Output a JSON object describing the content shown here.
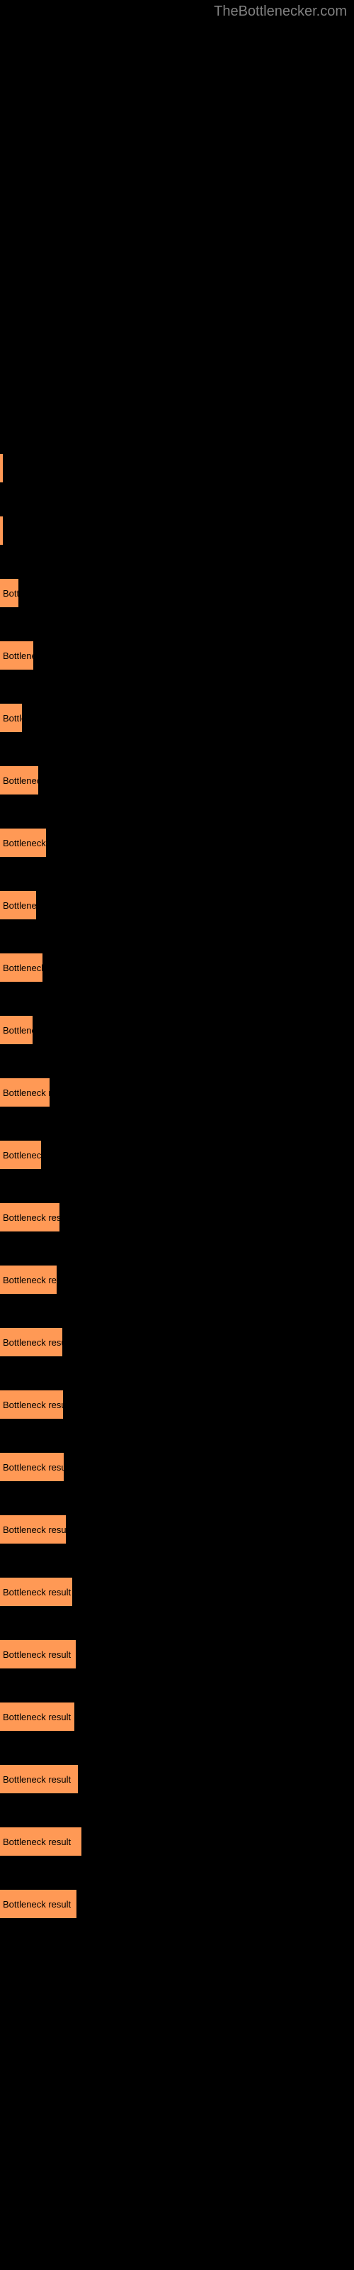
{
  "watermark": "TheBottlenecker.com",
  "chart": {
    "type": "bar",
    "background_color": "#000000",
    "bar_color": "#ff9955",
    "text_color": "#000000",
    "font_size": 13,
    "bars": [
      {
        "width": 3,
        "label": ""
      },
      {
        "width": 4,
        "label": ""
      },
      {
        "width": 26,
        "label": "Bottle"
      },
      {
        "width": 47,
        "label": "Bottleneck"
      },
      {
        "width": 31,
        "label": "Bottler"
      },
      {
        "width": 54,
        "label": "Bottleneck r"
      },
      {
        "width": 65,
        "label": "Bottleneck res"
      },
      {
        "width": 51,
        "label": "Bottleneck r"
      },
      {
        "width": 60,
        "label": "Bottleneck re"
      },
      {
        "width": 46,
        "label": "Bottlenec"
      },
      {
        "width": 70,
        "label": "Bottleneck resu"
      },
      {
        "width": 58,
        "label": "Bottleneck re"
      },
      {
        "width": 84,
        "label": "Bottleneck result"
      },
      {
        "width": 80,
        "label": "Bottleneck result"
      },
      {
        "width": 88,
        "label": "Bottleneck result"
      },
      {
        "width": 89,
        "label": "Bottleneck result"
      },
      {
        "width": 90,
        "label": "Bottleneck result"
      },
      {
        "width": 93,
        "label": "Bottleneck result"
      },
      {
        "width": 102,
        "label": "Bottleneck result"
      },
      {
        "width": 107,
        "label": "Bottleneck result"
      },
      {
        "width": 105,
        "label": "Bottleneck result"
      },
      {
        "width": 110,
        "label": "Bottleneck result"
      },
      {
        "width": 115,
        "label": "Bottleneck result"
      },
      {
        "width": 108,
        "label": "Bottleneck result"
      }
    ]
  }
}
